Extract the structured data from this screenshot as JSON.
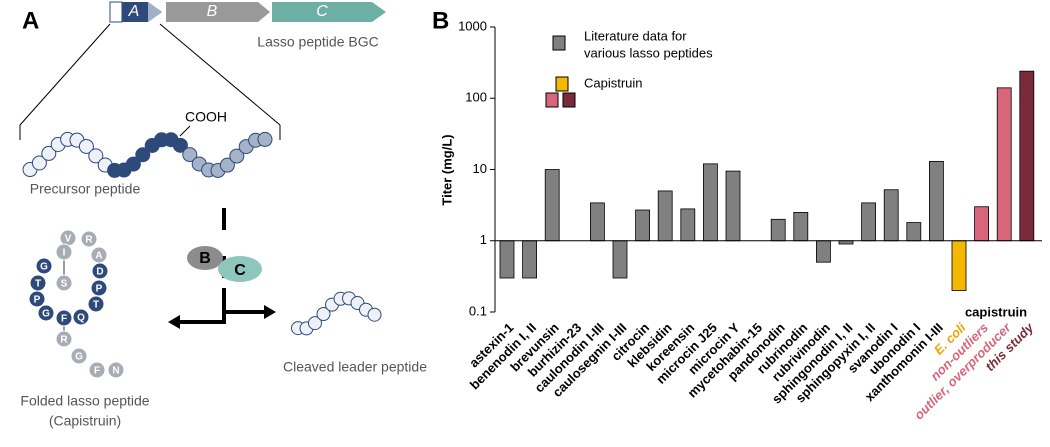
{
  "panel_a": {
    "letter": "A",
    "genes": [
      "A",
      "B",
      "C"
    ],
    "bgc_label": "Lasso peptide BGC",
    "cooh": "COOH",
    "precursor_label": "Precursor peptide",
    "enzymes": [
      "B",
      "C"
    ],
    "residues": [
      "V",
      "R",
      "A",
      "D",
      "P",
      "T",
      "Q",
      "F",
      "G",
      "P",
      "T",
      "G",
      "I",
      "S",
      "R",
      "G",
      "F",
      "N"
    ],
    "cleaved_label": "Cleaved leader peptide",
    "folded_label": [
      "Folded lasso peptide",
      "(Capistruin)"
    ]
  },
  "chart_data": {
    "type": "bar",
    "panel_letter": "B",
    "y_label": "Titer (mg/L)",
    "log_scale": true,
    "baseline": 1,
    "ylim": [
      0.1,
      1000
    ],
    "yticks": [
      0.1,
      1,
      10,
      100,
      1000
    ],
    "categories": [
      "astexin-1",
      "benenodin I, II",
      "brevunsin",
      "burhizin-23",
      "caulonodin I-III",
      "caulosegnin I-III",
      "citrocin",
      "klebsidin",
      "koreensin",
      "microcin J25",
      "microcin Y",
      "mycetohabin-15",
      "pandonodin",
      "rubrinodin",
      "rubrivinodin",
      "sphingonodin I, II",
      "sphingopyxin I, II",
      "svanodin I",
      "ubonodin I",
      "xanthomonin I-III",
      "E. coli",
      "non-outliers",
      "outlier, overproducer",
      "this study"
    ],
    "values": [
      0.3,
      0.3,
      10,
      null,
      3.4,
      0.3,
      2.7,
      5,
      2.8,
      12,
      9.5,
      null,
      2.0,
      2.5,
      0.5,
      0.9,
      3.4,
      5.2,
      1.8,
      13,
      0.2,
      3.0,
      140,
      240
    ],
    "colors": [
      "#808080",
      "#808080",
      "#808080",
      "#808080",
      "#808080",
      "#808080",
      "#808080",
      "#808080",
      "#808080",
      "#808080",
      "#808080",
      "#808080",
      "#808080",
      "#808080",
      "#808080",
      "#808080",
      "#808080",
      "#808080",
      "#808080",
      "#808080",
      "#f5b800",
      "#d8667a",
      "#d8667a",
      "#7a2a3a"
    ],
    "label_colors": [
      "#000000",
      "#000000",
      "#000000",
      "#000000",
      "#000000",
      "#000000",
      "#000000",
      "#000000",
      "#000000",
      "#000000",
      "#000000",
      "#000000",
      "#000000",
      "#000000",
      "#000000",
      "#000000",
      "#000000",
      "#000000",
      "#000000",
      "#000000",
      "#f0a400",
      "#d8667a",
      "#d8667a",
      "#7a2a3a"
    ],
    "group_label": "capistruin",
    "legend": [
      {
        "lines": [
          "Literature data for",
          "various lasso peptides"
        ],
        "colors": [
          "#808080"
        ]
      },
      {
        "lines": [
          "Capistruin"
        ],
        "colors": [
          "#f5b800",
          "#d8667a",
          "#7a2a3a"
        ]
      }
    ]
  }
}
